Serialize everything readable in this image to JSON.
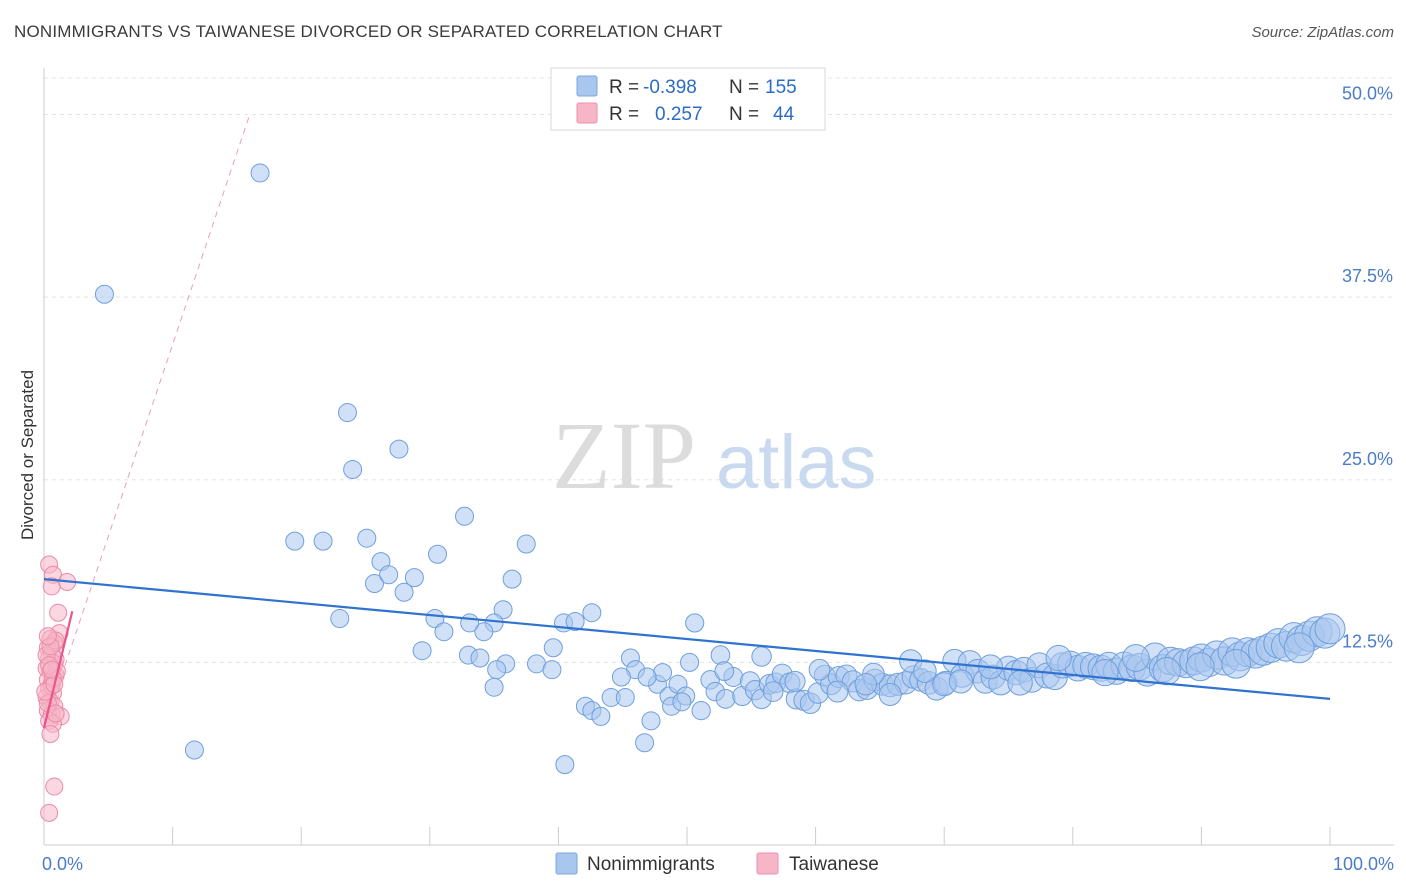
{
  "title": "NONIMMIGRANTS VS TAIWANESE DIVORCED OR SEPARATED CORRELATION CHART",
  "source": "Source: ZipAtlas.com",
  "watermark": {
    "zip": "ZIP",
    "atlas": "atlas"
  },
  "legend_top": [
    {
      "r_label": "R =",
      "r_value": "-0.398",
      "n_label": "N =",
      "n_value": "155",
      "color": "#a9c6ee",
      "stroke": "#7aa7e0"
    },
    {
      "r_label": "R =",
      "r_value": "0.257",
      "n_label": "N =",
      "n_value": "44",
      "color": "#f6b6c8",
      "stroke": "#ee8fab"
    }
  ],
  "legend_bottom": [
    {
      "label": "Nonimmigrants",
      "color": "#a9c6ee",
      "stroke": "#7aa7e0"
    },
    {
      "label": "Taiwanese",
      "color": "#f6b6c8",
      "stroke": "#ee8fab"
    }
  ],
  "chart_data": {
    "type": "scatter",
    "title": "NONIMMIGRANTS VS TAIWANESE DIVORCED OR SEPARATED CORRELATION CHART",
    "ylabel": "Divorced or Separated",
    "xlim": [
      0,
      100
    ],
    "ylim": [
      0,
      52.5
    ],
    "x_tick_labels": [
      {
        "value": 0,
        "label": "0.0%"
      },
      {
        "value": 100,
        "label": "100.0%"
      }
    ],
    "y_tick_labels": [
      {
        "value": 12.5,
        "label": "12.5%"
      },
      {
        "value": 25.0,
        "label": "25.0%"
      },
      {
        "value": 37.5,
        "label": "37.5%"
      },
      {
        "value": 50.0,
        "label": "50.0%"
      }
    ],
    "grid": true,
    "legend_placement": "top-center",
    "series": [
      {
        "name": "Nonimmigrants",
        "color": "#a9c6ee",
        "stroke": "#6f9fdc",
        "trend": {
          "x": [
            0,
            100
          ],
          "y": [
            18.2,
            10.0
          ],
          "color": "#2f72d0"
        },
        "points": [
          [
            16.8,
            46.0
          ],
          [
            4.7,
            37.7
          ],
          [
            11.7,
            6.5
          ],
          [
            23.6,
            29.6
          ],
          [
            27.6,
            27.1
          ],
          [
            24.0,
            25.7
          ],
          [
            19.5,
            20.8
          ],
          [
            21.7,
            20.8
          ],
          [
            25.1,
            21.0
          ],
          [
            26.2,
            19.4
          ],
          [
            25.7,
            17.9
          ],
          [
            26.8,
            18.5
          ],
          [
            28.0,
            17.3
          ],
          [
            28.8,
            18.3
          ],
          [
            30.6,
            19.9
          ],
          [
            32.7,
            22.5
          ],
          [
            37.5,
            20.6
          ],
          [
            36.4,
            18.2
          ],
          [
            35.7,
            16.1
          ],
          [
            35.0,
            15.2
          ],
          [
            34.2,
            14.6
          ],
          [
            33.1,
            15.2
          ],
          [
            30.4,
            15.5
          ],
          [
            31.1,
            14.6
          ],
          [
            23.0,
            15.5
          ],
          [
            29.4,
            13.3
          ],
          [
            33.0,
            13.0
          ],
          [
            33.9,
            12.8
          ],
          [
            35.9,
            12.4
          ],
          [
            35.2,
            12.0
          ],
          [
            35.0,
            10.8
          ],
          [
            38.3,
            12.4
          ],
          [
            39.6,
            13.5
          ],
          [
            39.5,
            12.0
          ],
          [
            40.4,
            15.2
          ],
          [
            41.3,
            15.3
          ],
          [
            42.6,
            15.9
          ],
          [
            40.5,
            5.5
          ],
          [
            42.1,
            9.5
          ],
          [
            42.6,
            9.2
          ],
          [
            43.3,
            8.8
          ],
          [
            44.1,
            10.1
          ],
          [
            45.2,
            10.1
          ],
          [
            45.6,
            12.8
          ],
          [
            46.0,
            12.0
          ],
          [
            46.7,
            7.0
          ],
          [
            47.2,
            8.5
          ],
          [
            47.7,
            11.0
          ],
          [
            48.1,
            11.8
          ],
          [
            48.6,
            10.2
          ],
          [
            48.8,
            9.5
          ],
          [
            49.3,
            11.0
          ],
          [
            49.9,
            10.2
          ],
          [
            50.2,
            12.5
          ],
          [
            50.6,
            15.2
          ],
          [
            51.1,
            9.2
          ],
          [
            51.8,
            11.3
          ],
          [
            52.2,
            10.5
          ],
          [
            52.6,
            13.0
          ],
          [
            53.0,
            10.0
          ],
          [
            53.6,
            11.5
          ],
          [
            54.3,
            10.2
          ],
          [
            54.9,
            11.2
          ],
          [
            55.3,
            10.6
          ],
          [
            55.8,
            10.0
          ],
          [
            56.4,
            11.0
          ],
          [
            56.9,
            11.1
          ],
          [
            57.4,
            11.7
          ],
          [
            58.0,
            11.1
          ],
          [
            58.5,
            10.0
          ],
          [
            59.1,
            9.9
          ],
          [
            59.6,
            9.7
          ],
          [
            60.2,
            10.4
          ],
          [
            60.7,
            11.6
          ],
          [
            61.2,
            11.0
          ],
          [
            61.8,
            11.5
          ],
          [
            62.4,
            11.6
          ],
          [
            62.9,
            11.2
          ],
          [
            63.4,
            10.6
          ],
          [
            64.0,
            10.7
          ],
          [
            64.6,
            11.3
          ],
          [
            65.2,
            11.0
          ],
          [
            65.8,
            10.9
          ],
          [
            66.4,
            11.0
          ],
          [
            67.0,
            11.1
          ],
          [
            67.6,
            11.5
          ],
          [
            68.2,
            11.3
          ],
          [
            68.8,
            11.1
          ],
          [
            69.4,
            10.7
          ],
          [
            70.1,
            11.1
          ],
          [
            70.8,
            12.6
          ],
          [
            71.4,
            11.6
          ],
          [
            72.0,
            12.5
          ],
          [
            72.6,
            11.9
          ],
          [
            73.2,
            11.2
          ],
          [
            73.8,
            11.5
          ],
          [
            74.4,
            11.1
          ],
          [
            75.0,
            12.1
          ],
          [
            75.6,
            11.8
          ],
          [
            76.2,
            12.0
          ],
          [
            76.8,
            11.3
          ],
          [
            77.4,
            12.3
          ],
          [
            78.0,
            11.6
          ],
          [
            78.6,
            11.5
          ],
          [
            79.2,
            12.3
          ],
          [
            79.8,
            12.4
          ],
          [
            80.4,
            12.1
          ],
          [
            81.0,
            12.3
          ],
          [
            81.6,
            12.2
          ],
          [
            82.2,
            12.1
          ],
          [
            82.8,
            12.3
          ],
          [
            83.4,
            11.9
          ],
          [
            84.0,
            12.3
          ],
          [
            84.6,
            12.1
          ],
          [
            85.2,
            12.2
          ],
          [
            85.8,
            11.8
          ],
          [
            86.4,
            12.9
          ],
          [
            87.0,
            12.1
          ],
          [
            87.6,
            12.6
          ],
          [
            88.2,
            12.5
          ],
          [
            88.8,
            12.4
          ],
          [
            89.4,
            12.6
          ],
          [
            90.0,
            12.8
          ],
          [
            90.6,
            12.5
          ],
          [
            91.2,
            13.0
          ],
          [
            91.8,
            12.6
          ],
          [
            92.4,
            13.2
          ],
          [
            93.0,
            12.9
          ],
          [
            93.6,
            13.2
          ],
          [
            94.2,
            13.1
          ],
          [
            94.8,
            13.3
          ],
          [
            95.4,
            13.5
          ],
          [
            96.0,
            13.8
          ],
          [
            96.6,
            13.6
          ],
          [
            97.2,
            14.2
          ],
          [
            97.8,
            14.0
          ],
          [
            98.4,
            14.3
          ],
          [
            99.0,
            14.6
          ],
          [
            99.6,
            14.5
          ],
          [
            100.0,
            14.8
          ],
          [
            55.8,
            12.9
          ],
          [
            64.5,
            11.7
          ],
          [
            70.0,
            11.0
          ],
          [
            58.4,
            11.2
          ],
          [
            82.5,
            11.8
          ],
          [
            46.9,
            11.5
          ],
          [
            67.4,
            12.6
          ],
          [
            75.9,
            11.1
          ],
          [
            52.9,
            11.9
          ],
          [
            61.7,
            10.5
          ],
          [
            87.3,
            11.9
          ],
          [
            78.9,
            12.8
          ],
          [
            56.7,
            10.5
          ],
          [
            65.8,
            10.3
          ],
          [
            73.6,
            12.2
          ],
          [
            44.9,
            11.5
          ],
          [
            49.6,
            9.8
          ],
          [
            60.3,
            12.0
          ],
          [
            63.9,
            11.0
          ],
          [
            68.5,
            11.9
          ],
          [
            71.3,
            11.2
          ],
          [
            84.9,
            12.8
          ],
          [
            89.9,
            12.2
          ],
          [
            92.7,
            12.4
          ],
          [
            97.6,
            13.5
          ]
        ]
      },
      {
        "name": "Taiwanese",
        "color": "#f6b6c8",
        "stroke": "#ec8aa7",
        "trend": {
          "x": [
            0,
            2.2
          ],
          "y": [
            8.0,
            16.0
          ],
          "color": "#e8558a"
        },
        "trend_ext": {
          "x": [
            0,
            16.0
          ],
          "y": [
            8.0,
            50.0
          ],
          "color": "#e8a0b6"
        },
        "points": [
          [
            0.4,
            19.2
          ],
          [
            0.7,
            18.5
          ],
          [
            0.6,
            17.7
          ],
          [
            1.8,
            18.0
          ],
          [
            1.1,
            15.9
          ],
          [
            1.2,
            14.5
          ],
          [
            0.5,
            14.1
          ],
          [
            0.8,
            13.8
          ],
          [
            0.3,
            13.5
          ],
          [
            0.6,
            13.1
          ],
          [
            0.4,
            12.8
          ],
          [
            0.8,
            12.4
          ],
          [
            0.2,
            12.1
          ],
          [
            0.5,
            11.9
          ],
          [
            0.9,
            11.6
          ],
          [
            0.3,
            11.3
          ],
          [
            0.6,
            11.0
          ],
          [
            0.4,
            10.7
          ],
          [
            0.7,
            10.4
          ],
          [
            0.2,
            10.1
          ],
          [
            0.5,
            9.8
          ],
          [
            0.8,
            9.5
          ],
          [
            0.3,
            9.2
          ],
          [
            0.6,
            8.9
          ],
          [
            1.3,
            8.8
          ],
          [
            0.4,
            8.5
          ],
          [
            0.7,
            8.3
          ],
          [
            0.5,
            7.6
          ],
          [
            0.8,
            4.0
          ],
          [
            0.4,
            2.2
          ],
          [
            0.9,
            12.7
          ],
          [
            1.0,
            11.9
          ],
          [
            0.2,
            13.0
          ],
          [
            0.6,
            10.9
          ],
          [
            0.9,
            14.0
          ],
          [
            0.3,
            9.7
          ],
          [
            0.7,
            11.4
          ],
          [
            0.4,
            12.3
          ],
          [
            0.1,
            10.5
          ],
          [
            0.9,
            9.0
          ],
          [
            0.5,
            13.6
          ],
          [
            0.8,
            11.0
          ],
          [
            0.3,
            14.3
          ],
          [
            0.6,
            12.0
          ]
        ]
      }
    ]
  }
}
